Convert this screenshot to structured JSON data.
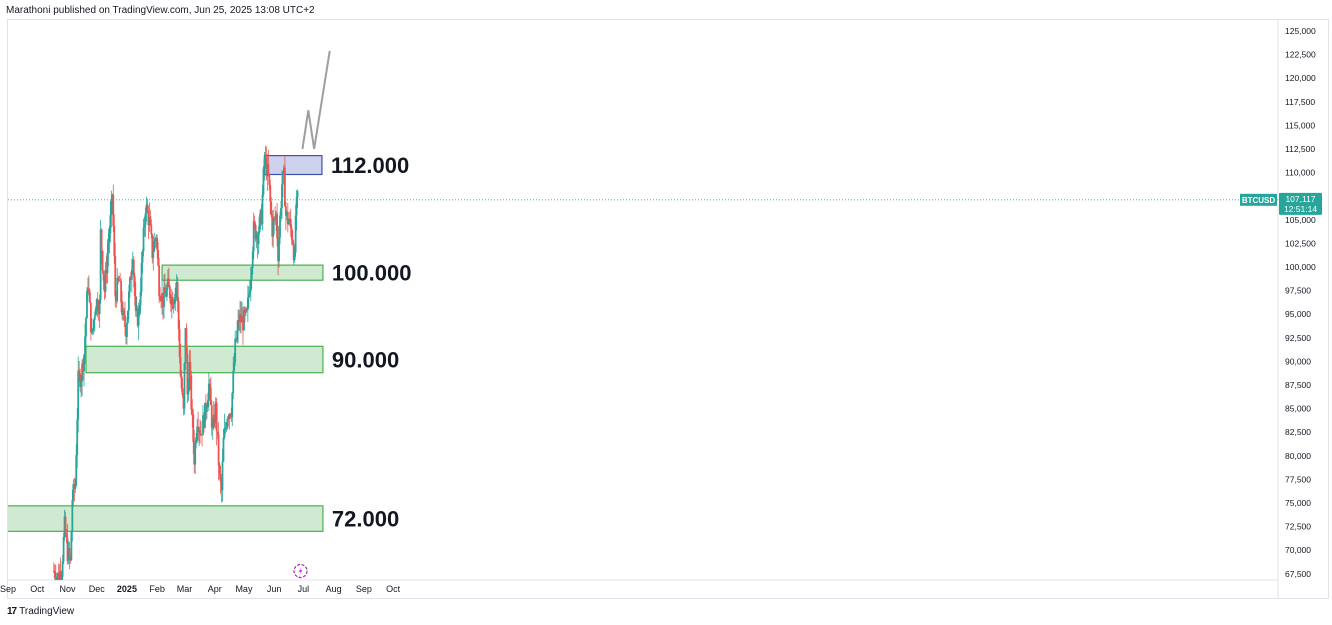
{
  "header": {
    "text": "Marathoni published on TradingView.com, Jun 25, 2025 13:08 UTC+2"
  },
  "footer": {
    "logo_text": "17",
    "brand": "TradingView"
  },
  "colors": {
    "up": "#26a69a",
    "down": "#ef5350",
    "zone_fill": "#c8e6c9",
    "zone_stroke": "#4caf50",
    "top_fill": "#c5cae9",
    "top_stroke": "#3f51b5",
    "projection": "#9e9e9e",
    "badge": "#26a69a"
  },
  "chart_data": {
    "type": "candlestick",
    "symbol": "BTCUSD",
    "last_price": "107,117",
    "countdown": "12:51:14",
    "ylim": [
      66500,
      126000
    ],
    "y_ticks": [
      "125,000",
      "122,500",
      "120,000",
      "117,500",
      "115,000",
      "112,500",
      "110,000",
      "107,500",
      "105,000",
      "102,500",
      "100,000",
      "97,500",
      "95,000",
      "92,500",
      "90,000",
      "87,500",
      "85,000",
      "82,500",
      "80,000",
      "77,500",
      "75,000",
      "72,500",
      "70,000",
      "67,500"
    ],
    "x_ticks": [
      {
        "label": "Sep",
        "date": "2024-09-01"
      },
      {
        "label": "Oct",
        "date": "2024-10-01"
      },
      {
        "label": "Nov",
        "date": "2024-11-01"
      },
      {
        "label": "Dec",
        "date": "2024-12-01"
      },
      {
        "label": "2025",
        "date": "2025-01-01"
      },
      {
        "label": "Feb",
        "date": "2025-02-01"
      },
      {
        "label": "Mar",
        "date": "2025-03-01"
      },
      {
        "label": "Apr",
        "date": "2025-04-01"
      },
      {
        "label": "May",
        "date": "2025-05-01"
      },
      {
        "label": "Jun",
        "date": "2025-06-01"
      },
      {
        "label": "Jul",
        "date": "2025-07-01"
      },
      {
        "label": "Aug",
        "date": "2025-08-01"
      },
      {
        "label": "Sep",
        "date": "2025-09-01"
      },
      {
        "label": "Oct",
        "date": "2025-10-01"
      }
    ],
    "zones": [
      {
        "label": "112.000",
        "from_date": "2025-05-22",
        "to_date": "2025-07-20",
        "low": 109800,
        "high": 111800,
        "style": "resistance"
      },
      {
        "label": "100.000",
        "from_date": "2025-02-06",
        "to_date": "2025-07-21",
        "low": 98600,
        "high": 100200,
        "style": "support"
      },
      {
        "label": "90.000",
        "from_date": "2024-11-20",
        "to_date": "2025-07-21",
        "low": 88800,
        "high": 91600,
        "style": "support"
      },
      {
        "label": "72.000",
        "from_date": "2024-08-30",
        "to_date": "2025-07-21",
        "low": 72000,
        "high": 74700,
        "style": "support"
      }
    ],
    "projection": [
      {
        "date": "2025-06-30",
        "y": 112500
      },
      {
        "date": "2025-07-06",
        "y": 116600
      },
      {
        "date": "2025-07-12",
        "y": 112500
      },
      {
        "date": "2025-07-28",
        "y": 122900
      }
    ],
    "price_path": [
      {
        "date": "2024-10-18",
        "y": 67800
      },
      {
        "date": "2024-10-22",
        "y": 67200
      },
      {
        "date": "2024-10-26",
        "y": 68000
      },
      {
        "date": "2024-10-29",
        "y": 72500
      },
      {
        "date": "2024-11-01",
        "y": 69800
      },
      {
        "date": "2024-11-04",
        "y": 68600
      },
      {
        "date": "2024-11-06",
        "y": 75500
      },
      {
        "date": "2024-11-09",
        "y": 77000
      },
      {
        "date": "2024-11-12",
        "y": 88000
      },
      {
        "date": "2024-11-15",
        "y": 88500
      },
      {
        "date": "2024-11-18",
        "y": 90800
      },
      {
        "date": "2024-11-22",
        "y": 98500
      },
      {
        "date": "2024-11-26",
        "y": 92500
      },
      {
        "date": "2024-11-30",
        "y": 96400
      },
      {
        "date": "2024-12-04",
        "y": 96000
      },
      {
        "date": "2024-12-05",
        "y": 103500
      },
      {
        "date": "2024-12-09",
        "y": 97500
      },
      {
        "date": "2024-12-12",
        "y": 101500
      },
      {
        "date": "2024-12-16",
        "y": 106000
      },
      {
        "date": "2024-12-17",
        "y": 107800
      },
      {
        "date": "2024-12-20",
        "y": 97000
      },
      {
        "date": "2024-12-24",
        "y": 98500
      },
      {
        "date": "2024-12-28",
        "y": 94500
      },
      {
        "date": "2024-12-31",
        "y": 93500
      },
      {
        "date": "2025-01-04",
        "y": 98000
      },
      {
        "date": "2025-01-07",
        "y": 101800
      },
      {
        "date": "2025-01-10",
        "y": 94500
      },
      {
        "date": "2025-01-13",
        "y": 94800
      },
      {
        "date": "2025-01-16",
        "y": 99800
      },
      {
        "date": "2025-01-20",
        "y": 106500
      },
      {
        "date": "2025-01-24",
        "y": 104800
      },
      {
        "date": "2025-01-27",
        "y": 101500
      },
      {
        "date": "2025-01-31",
        "y": 103500
      },
      {
        "date": "2025-02-03",
        "y": 98000
      },
      {
        "date": "2025-02-07",
        "y": 96500
      },
      {
        "date": "2025-02-12",
        "y": 97800
      },
      {
        "date": "2025-02-17",
        "y": 96500
      },
      {
        "date": "2025-02-21",
        "y": 98500
      },
      {
        "date": "2025-02-25",
        "y": 88500
      },
      {
        "date": "2025-02-28",
        "y": 84500
      },
      {
        "date": "2025-03-02",
        "y": 94000
      },
      {
        "date": "2025-03-04",
        "y": 86500
      },
      {
        "date": "2025-03-06",
        "y": 89500
      },
      {
        "date": "2025-03-09",
        "y": 83500
      },
      {
        "date": "2025-03-11",
        "y": 79800
      },
      {
        "date": "2025-03-14",
        "y": 84000
      },
      {
        "date": "2025-03-18",
        "y": 82500
      },
      {
        "date": "2025-03-22",
        "y": 84500
      },
      {
        "date": "2025-03-26",
        "y": 87500
      },
      {
        "date": "2025-03-30",
        "y": 82500
      },
      {
        "date": "2025-04-02",
        "y": 85000
      },
      {
        "date": "2025-04-06",
        "y": 77500
      },
      {
        "date": "2025-04-08",
        "y": 76200
      },
      {
        "date": "2025-04-10",
        "y": 81500
      },
      {
        "date": "2025-04-14",
        "y": 84500
      },
      {
        "date": "2025-04-18",
        "y": 85000
      },
      {
        "date": "2025-04-22",
        "y": 91500
      },
      {
        "date": "2025-04-26",
        "y": 94500
      },
      {
        "date": "2025-04-30",
        "y": 94200
      },
      {
        "date": "2025-05-04",
        "y": 94800
      },
      {
        "date": "2025-05-08",
        "y": 99500
      },
      {
        "date": "2025-05-11",
        "y": 104000
      },
      {
        "date": "2025-05-15",
        "y": 103500
      },
      {
        "date": "2025-05-19",
        "y": 105500
      },
      {
        "date": "2025-05-22",
        "y": 111500
      },
      {
        "date": "2025-05-26",
        "y": 109500
      },
      {
        "date": "2025-05-30",
        "y": 104000
      },
      {
        "date": "2025-06-03",
        "y": 105500
      },
      {
        "date": "2025-06-05",
        "y": 101500
      },
      {
        "date": "2025-06-09",
        "y": 108800
      },
      {
        "date": "2025-06-11",
        "y": 109500
      },
      {
        "date": "2025-06-13",
        "y": 105500
      },
      {
        "date": "2025-06-17",
        "y": 104500
      },
      {
        "date": "2025-06-20",
        "y": 103000
      },
      {
        "date": "2025-06-22",
        "y": 100500
      },
      {
        "date": "2025-06-23",
        "y": 105500
      },
      {
        "date": "2025-06-25",
        "y": 107117
      }
    ]
  }
}
